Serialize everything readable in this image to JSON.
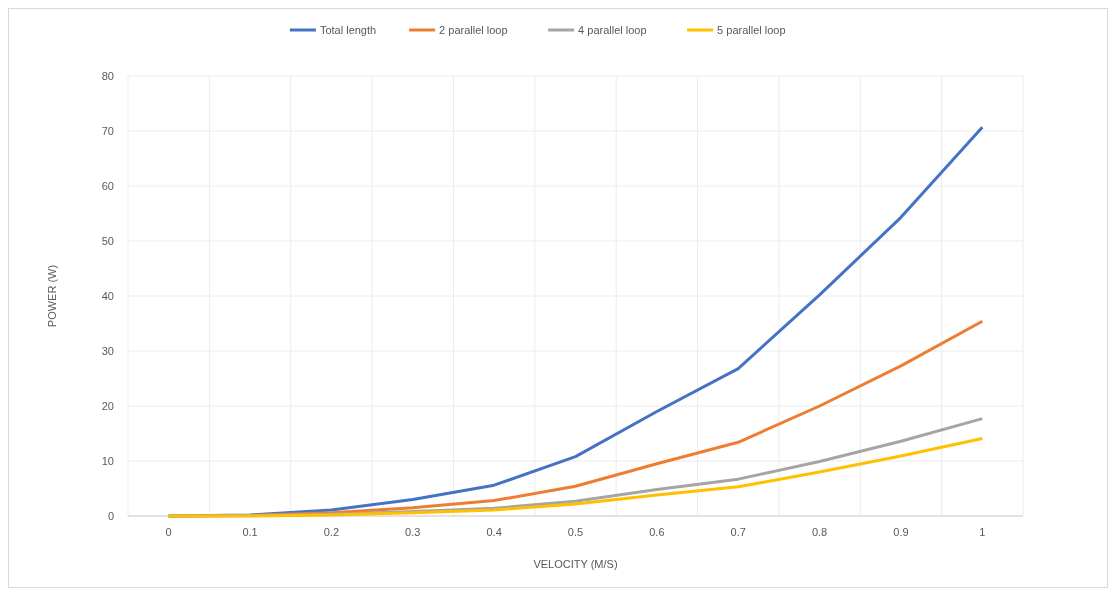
{
  "chart_data": {
    "type": "line",
    "xlabel": "VELOCITY (M/S)",
    "ylabel": "POWER (W)",
    "categories": [
      "0",
      "0.1",
      "0.2",
      "0.3",
      "0.4",
      "0.5",
      "0.6",
      "0.7",
      "0.8",
      "0.9",
      "1"
    ],
    "series": [
      {
        "name": "Total length",
        "color": "#4472c4",
        "values": [
          0,
          0.2,
          1.1,
          3,
          5.6,
          10.8,
          19,
          26.8,
          40.2,
          54.3,
          70.7
        ]
      },
      {
        "name": "2 parallel loop",
        "color": "#ed7d31",
        "values": [
          0,
          0.1,
          0.6,
          1.5,
          2.8,
          5.4,
          9.5,
          13.4,
          20,
          27.3,
          35.4
        ]
      },
      {
        "name": "4 parallel loop",
        "color": "#a5a5a5",
        "values": [
          0,
          0.1,
          0.3,
          0.8,
          1.4,
          2.7,
          4.8,
          6.7,
          9.9,
          13.6,
          17.7
        ]
      },
      {
        "name": "5 parallel loop",
        "color": "#ffc000",
        "values": [
          0,
          0,
          0.2,
          0.6,
          1.1,
          2.2,
          3.8,
          5.3,
          8,
          10.9,
          14.1
        ]
      }
    ],
    "ylim": [
      0,
      80
    ],
    "yticks": [
      0,
      10,
      20,
      30,
      40,
      50,
      60,
      70,
      80
    ],
    "grid": true,
    "legend": "top",
    "marker": "none",
    "line_style": "solid"
  }
}
